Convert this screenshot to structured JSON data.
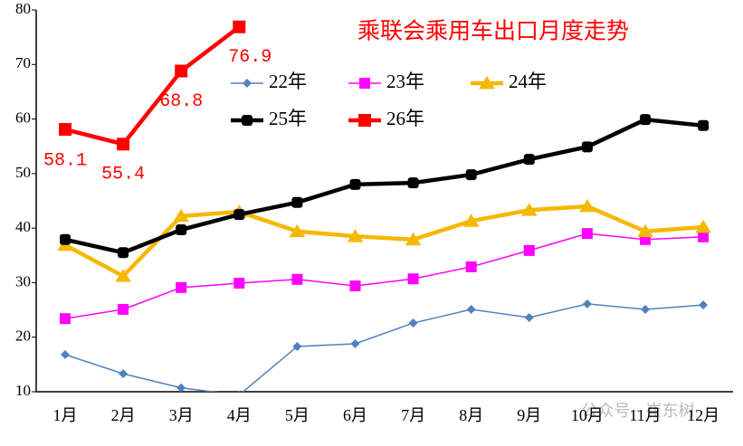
{
  "chart_data": {
    "type": "line",
    "title": "乘联会乘用车出口月度走势",
    "categories": [
      "1月",
      "2月",
      "3月",
      "4月",
      "5月",
      "6月",
      "7月",
      "8月",
      "9月",
      "10月",
      "11月",
      "12月"
    ],
    "series": [
      {
        "name": "22年",
        "color": "#4f81bd",
        "marker": "diamond",
        "values": [
          16.8,
          13.3,
          10.7,
          9.4,
          18.3,
          18.8,
          22.6,
          25.1,
          23.6,
          26.1,
          25.1,
          25.9
        ]
      },
      {
        "name": "23年",
        "color": "#ff00ff",
        "marker": "square",
        "values": [
          23.4,
          25.1,
          29.1,
          29.9,
          30.6,
          29.4,
          30.7,
          32.9,
          35.9,
          39.0,
          37.9,
          38.4
        ]
      },
      {
        "name": "24年",
        "color": "#f5b800",
        "marker": "triangle",
        "values": [
          36.9,
          31.2,
          42.2,
          43.0,
          39.4,
          38.5,
          37.9,
          41.3,
          43.3,
          44.0,
          39.4,
          40.2
        ]
      },
      {
        "name": "25年",
        "color": "#000000",
        "marker": "circle",
        "values": [
          37.9,
          35.5,
          39.7,
          42.5,
          44.7,
          48.0,
          48.3,
          49.8,
          52.6,
          54.9,
          59.9,
          58.8
        ]
      },
      {
        "name": "26年",
        "color": "#ff0000",
        "marker": "square",
        "data_labels": true,
        "values": [
          58.1,
          55.4,
          68.8,
          76.9,
          null,
          null,
          null,
          null,
          null,
          null,
          null,
          null
        ]
      }
    ],
    "ylim": [
      10,
      80
    ],
    "yticks": [
      10,
      20,
      30,
      40,
      50,
      60,
      70,
      80
    ],
    "watermark": "公众号 · 崔东树"
  }
}
